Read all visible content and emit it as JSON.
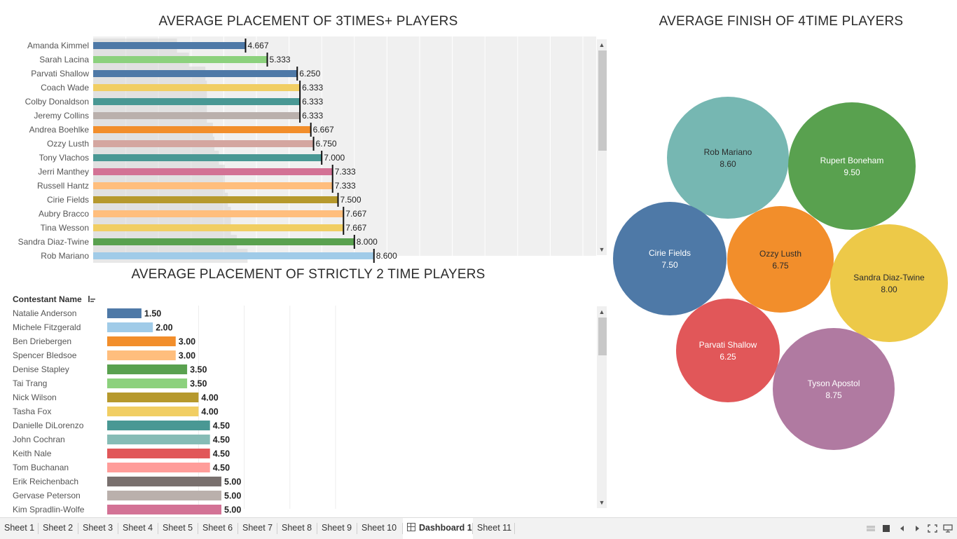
{
  "chart_data": [
    {
      "type": "bar",
      "title": "AVERAGE PLACEMENT OF 3TIMES+ PLAYERS",
      "categories": [
        "Amanda Kimmel",
        "Sarah Lacina",
        "Parvati Shallow",
        "Coach Wade",
        "Colby Donaldson",
        "Jeremy Collins",
        "Andrea Boehlke",
        "Ozzy Lusth",
        "Tony Vlachos",
        "Jerri Manthey",
        "Russell Hantz",
        "Cirie Fields",
        "Aubry Bracco",
        "Tina Wesson",
        "Sandra Diaz-Twine",
        "Rob Mariano"
      ],
      "values": [
        4.667,
        5.333,
        6.25,
        6.333,
        6.333,
        6.333,
        6.667,
        6.75,
        7.0,
        7.333,
        7.333,
        7.5,
        7.667,
        7.667,
        8.0,
        8.6
      ],
      "value_labels": [
        "4.667",
        "5.333",
        "6.250",
        "6.333",
        "6.333",
        "6.333",
        "6.667",
        "6.750",
        "7.000",
        "7.333",
        "7.333",
        "7.500",
        "7.667",
        "7.667",
        "8.000",
        "8.600"
      ],
      "colors": [
        "#4e79a7",
        "#8cd17d",
        "#4e79a7",
        "#f1ce63",
        "#499894",
        "#bab0ac",
        "#f28e2b",
        "#d4a6a0",
        "#499894",
        "#d37295",
        "#ffbe7d",
        "#b6992d",
        "#ffbe7d",
        "#f1ce63",
        "#59a14f",
        "#a0cbe8"
      ],
      "xlim": [
        0,
        17
      ],
      "grid": true
    },
    {
      "type": "bar",
      "title": "AVERAGE PLACEMENT OF STRICTLY 2 TIME PLAYERS",
      "column_header": "Contestant Name",
      "categories": [
        "Natalie Anderson",
        "Michele Fitzgerald",
        "Ben Driebergen",
        "Spencer Bledsoe",
        "Denise Stapley",
        "Tai Trang",
        "Nick Wilson",
        "Tasha Fox",
        "Danielle DiLorenzo",
        "John Cochran",
        "Keith Nale",
        "Tom Buchanan",
        "Erik Reichenbach",
        "Gervase Peterson",
        "Kim Spradlin-Wolfe"
      ],
      "values": [
        1.5,
        2.0,
        3.0,
        3.0,
        3.5,
        3.5,
        4.0,
        4.0,
        4.5,
        4.5,
        4.5,
        4.5,
        5.0,
        5.0,
        5.0
      ],
      "value_labels": [
        "1.50",
        "2.00",
        "3.00",
        "3.00",
        "3.50",
        "3.50",
        "4.00",
        "4.00",
        "4.50",
        "4.50",
        "4.50",
        "4.50",
        "5.00",
        "5.00",
        "5.00"
      ],
      "colors": [
        "#4e79a7",
        "#a0cbe8",
        "#f28e2b",
        "#ffbe7d",
        "#59a14f",
        "#8cd17d",
        "#b6992d",
        "#f1ce63",
        "#499894",
        "#86bcb6",
        "#e15759",
        "#ff9d9a",
        "#79706e",
        "#bab0ac",
        "#d37295"
      ],
      "xlim": [
        0,
        11
      ]
    },
    {
      "type": "bubble",
      "title": "AVERAGE FINISH OF 4TIME PLAYERS",
      "labels": [
        "Rob Mariano",
        "Rupert Boneham",
        "Cirie Fields",
        "Ozzy Lusth",
        "Sandra Diaz-Twine",
        "Parvati Shallow",
        "Tyson Apostol"
      ],
      "values": [
        8.6,
        9.5,
        7.5,
        6.75,
        8.0,
        6.25,
        8.75
      ],
      "value_labels": [
        "8.60",
        "9.50",
        "7.50",
        "6.75",
        "8.00",
        "6.25",
        "8.75"
      ],
      "colors": [
        "#76b7b2",
        "#59a14f",
        "#4e79a7",
        "#f28e2b",
        "#edc948",
        "#e15759",
        "#b07aa1"
      ],
      "text_colors": [
        "#2b2b2b",
        "#ffffff",
        "#ffffff",
        "#2b2b2b",
        "#2b2b2b",
        "#ffffff",
        "#ffffff"
      ]
    }
  ],
  "tabs": [
    "Sheet 1",
    "Sheet 2",
    "Sheet 3",
    "Sheet 4",
    "Sheet 5",
    "Sheet 6",
    "Sheet 7",
    "Sheet 8",
    "Sheet 9",
    "Sheet 10",
    "Dashboard 1",
    "Sheet 11"
  ],
  "active_tab": "Dashboard 1",
  "icons": {
    "sort": "sort-descending-icon",
    "dashboard_tab": "dashboard-icon",
    "controls": [
      "show-sheets-grid-icon",
      "filmstrip-icon",
      "previous-icon",
      "next-icon",
      "fit-screen-icon",
      "presentation-mode-icon"
    ]
  }
}
